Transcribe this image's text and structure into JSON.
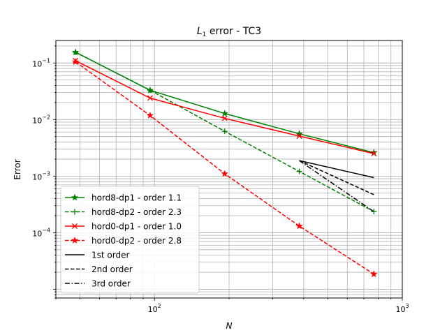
{
  "chart_data": {
    "type": "line",
    "title_prefix": "L",
    "title_sub": "1",
    "title_suffix": " error - TC3",
    "xlabel": "N",
    "ylabel": "Error",
    "xscale": "log",
    "yscale": "log",
    "xlim": [
      40,
      1000
    ],
    "ylim": [
      7e-06,
      0.25
    ],
    "grid": "both major and minor",
    "legend_position": "lower-left",
    "x_ticks": [
      {
        "base": "10",
        "exp": "2",
        "value": 100
      },
      {
        "base": "10",
        "exp": "3",
        "value": 1000
      }
    ],
    "y_ticks": [
      {
        "base": "10",
        "exp": "−1",
        "value": 0.1
      },
      {
        "base": "10",
        "exp": "−2",
        "value": 0.01
      },
      {
        "base": "10",
        "exp": "−3",
        "value": 0.001
      },
      {
        "base": "10",
        "exp": "−4",
        "value": 0.0001
      }
    ],
    "series": [
      {
        "name": "hord8-dp1 - order 1.1",
        "color": "#008000",
        "dash": "solid",
        "marker": "star",
        "x": [
          48,
          96,
          192,
          384,
          768
        ],
        "y": [
          0.155,
          0.033,
          0.0128,
          0.0056,
          0.0026
        ]
      },
      {
        "name": "hord8-dp2 - order 2.3",
        "color": "#008000",
        "dash": "dashed",
        "marker": "plus",
        "x": [
          48,
          96,
          192,
          384,
          768
        ],
        "y": [
          0.155,
          0.033,
          0.0062,
          0.00121,
          0.000236
        ]
      },
      {
        "name": "hord0-dp1 - order 1.0",
        "color": "#ff0000",
        "dash": "solid",
        "marker": "x",
        "x": [
          48,
          96,
          192,
          384,
          768
        ],
        "y": [
          0.11,
          0.024,
          0.0105,
          0.0051,
          0.0025
        ]
      },
      {
        "name": "hord0-dp2 - order 2.8",
        "color": "#ff0000",
        "dash": "dashed",
        "marker": "star",
        "x": [
          48,
          96,
          192,
          384,
          768
        ],
        "y": [
          0.105,
          0.0118,
          0.0011,
          0.000131,
          1.85e-05
        ]
      },
      {
        "name": "1st order",
        "color": "#000000",
        "dash": "solid",
        "marker": "none",
        "x": [
          384,
          768
        ],
        "y": [
          0.00188,
          0.00094
        ]
      },
      {
        "name": "2nd order",
        "color": "#000000",
        "dash": "dashed",
        "marker": "none",
        "x": [
          384,
          768
        ],
        "y": [
          0.00188,
          0.00047
        ]
      },
      {
        "name": "3rd order",
        "color": "#000000",
        "dash": "dashdot",
        "marker": "none",
        "x": [
          384,
          768
        ],
        "y": [
          0.00188,
          0.000235
        ]
      }
    ]
  }
}
